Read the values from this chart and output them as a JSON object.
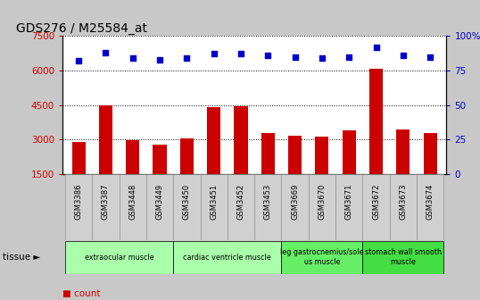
{
  "title": "GDS276 / M25584_at",
  "samples": [
    "GSM3386",
    "GSM3387",
    "GSM3448",
    "GSM3449",
    "GSM3450",
    "GSM3451",
    "GSM3452",
    "GSM3453",
    "GSM3669",
    "GSM3670",
    "GSM3671",
    "GSM3672",
    "GSM3673",
    "GSM3674"
  ],
  "counts": [
    2900,
    4480,
    2960,
    2780,
    3060,
    4400,
    4430,
    3280,
    3180,
    3120,
    3400,
    6080,
    3430,
    3280
  ],
  "percentiles": [
    82,
    88,
    84,
    83,
    84,
    87,
    87,
    86,
    85,
    84,
    85,
    92,
    86,
    85
  ],
  "ylim_left": [
    1500,
    7500
  ],
  "ylim_right": [
    0,
    100
  ],
  "yticks_left": [
    1500,
    3000,
    4500,
    6000,
    7500
  ],
  "yticks_right": [
    0,
    25,
    50,
    75,
    100
  ],
  "bar_color": "#cc0000",
  "dot_color": "#0000cc",
  "tissue_groups": [
    {
      "label": "extraocular muscle",
      "start": 0,
      "end": 3,
      "color": "#aaffaa"
    },
    {
      "label": "cardiac ventricle muscle",
      "start": 4,
      "end": 7,
      "color": "#aaffaa"
    },
    {
      "label": "leg gastrocnemius/sole\nus muscle",
      "start": 8,
      "end": 10,
      "color": "#66ee66"
    },
    {
      "label": "stomach wall smooth\nmuscle",
      "start": 11,
      "end": 13,
      "color": "#44dd44"
    }
  ],
  "fig_bg": "#c8c8c8",
  "plot_bg": "#ffffff",
  "tick_label_bg": "#d0d0d0"
}
